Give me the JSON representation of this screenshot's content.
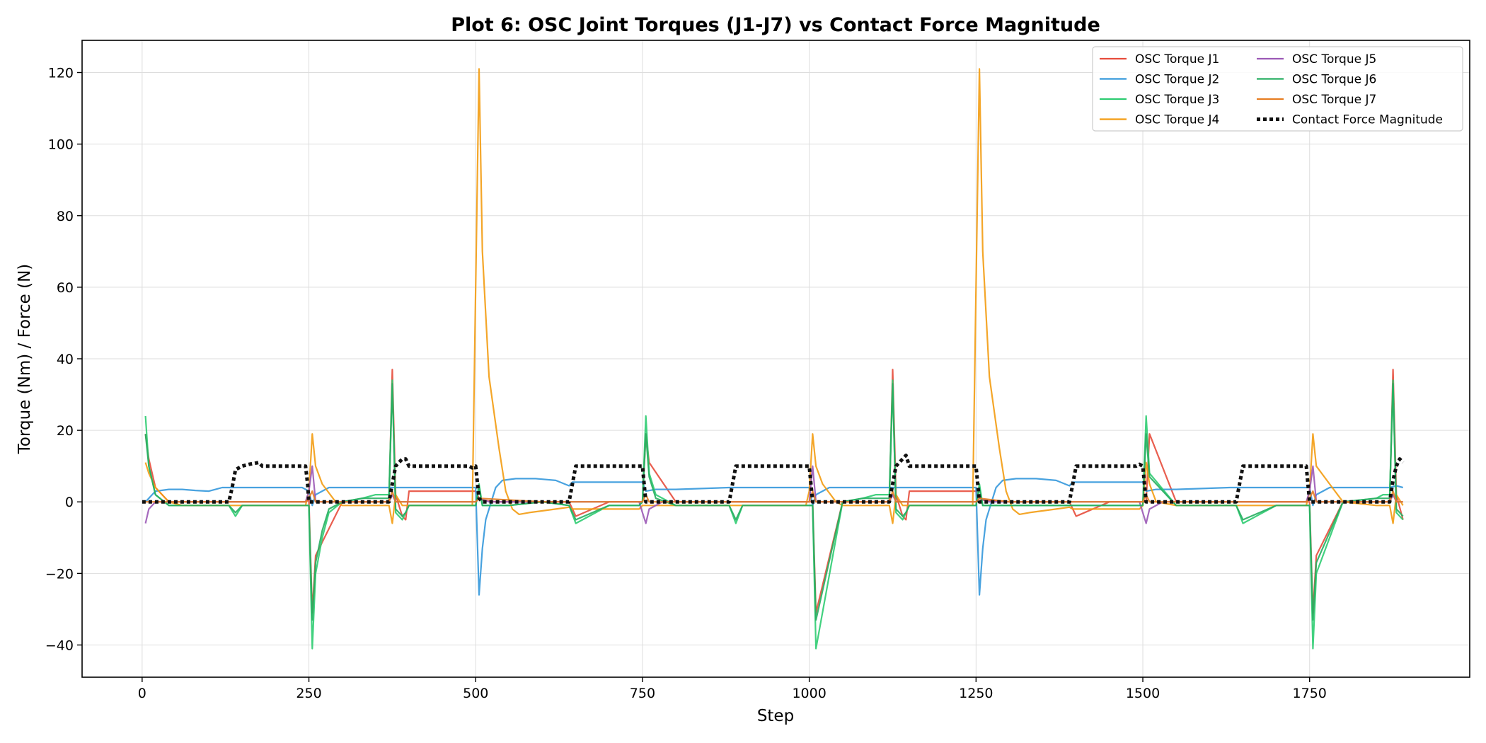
{
  "chart_data": {
    "type": "line",
    "title": "Plot 6: OSC Joint Torques (J1-J7) vs Contact Force Magnitude",
    "xlabel": "Step",
    "ylabel": "Torque (Nm) / Force (N)",
    "xlim": [
      -90,
      1990
    ],
    "ylim": [
      -49,
      129
    ],
    "xticks": [
      0,
      250,
      500,
      750,
      1000,
      1250,
      1500,
      1750
    ],
    "xtick_labels": [
      "0",
      "250",
      "500",
      "750",
      "1000",
      "1250",
      "1500",
      "1750"
    ],
    "yticks": [
      -40,
      -20,
      0,
      20,
      40,
      60,
      80,
      100,
      120
    ],
    "ytick_labels": [
      "−40",
      "−20",
      "0",
      "20",
      "40",
      "60",
      "80",
      "100",
      "120"
    ],
    "grid": true,
    "legend_position": "top-right",
    "legend_columns": 2,
    "series": [
      {
        "name": "OSC Torque J1",
        "color": "#e74c3c",
        "style": "solid",
        "x": [
          5,
          10,
          20,
          40,
          60,
          100,
          140,
          200,
          245,
          250,
          255,
          260,
          300,
          350,
          370,
          375,
          380,
          390,
          395,
          400,
          450,
          500,
          505,
          510,
          530,
          600,
          640,
          650,
          700,
          745,
          750,
          755,
          760,
          800,
          880,
          890,
          900,
          1000,
          1005,
          1010,
          1050,
          1100,
          1120,
          1125,
          1130,
          1140,
          1145,
          1150,
          1200,
          1250,
          1255,
          1260,
          1300,
          1390,
          1400,
          1450,
          1500,
          1505,
          1510,
          1550,
          1640,
          1650,
          1700,
          1750,
          1755,
          1760,
          1800,
          1860,
          1870,
          1875,
          1880,
          1890
        ],
        "y": [
          19,
          12,
          4,
          0,
          0,
          0,
          0,
          0,
          0,
          0.5,
          -31,
          -15,
          0,
          0,
          0,
          37,
          2,
          -4,
          -5,
          3,
          3,
          3,
          1,
          0.5,
          0,
          0,
          0,
          -4,
          0,
          0,
          0,
          19,
          11,
          0,
          0,
          0,
          0,
          0,
          0,
          -31,
          0,
          0,
          0,
          37,
          2,
          -4,
          -5,
          3,
          3,
          3,
          1,
          0.5,
          0,
          0,
          -4,
          0,
          0,
          0,
          19,
          0,
          0,
          0,
          0,
          0,
          -31,
          -15,
          0,
          0,
          0,
          37,
          2,
          -5
        ]
      },
      {
        "name": "OSC Torque J2",
        "color": "#3498db",
        "style": "solid",
        "x": [
          5,
          20,
          40,
          60,
          80,
          100,
          110,
          120,
          140,
          160,
          200,
          240,
          250,
          255,
          260,
          280,
          300,
          340,
          370,
          380,
          400,
          450,
          500,
          505,
          510,
          515,
          530,
          540,
          560,
          590,
          620,
          640,
          645,
          650,
          700,
          750,
          755,
          770,
          800,
          880,
          890,
          900,
          1000,
          1005,
          1010,
          1030,
          1050,
          1090,
          1120,
          1130,
          1150,
          1200,
          1250,
          1255,
          1260,
          1265,
          1280,
          1290,
          1310,
          1340,
          1370,
          1390,
          1395,
          1400,
          1450,
          1500,
          1505,
          1520,
          1550,
          1630,
          1640,
          1650,
          1750,
          1755,
          1760,
          1780,
          1800,
          1840,
          1870,
          1880,
          1890
        ],
        "y": [
          0,
          3,
          3.5,
          3.5,
          3.2,
          3,
          3.5,
          4,
          4,
          4,
          4,
          4,
          3,
          -1,
          2,
          4,
          4,
          4,
          4,
          4,
          4,
          4,
          4,
          -26,
          -13,
          -5,
          4,
          6,
          6.5,
          6.5,
          6,
          4.5,
          5.5,
          5.5,
          5.5,
          5.5,
          3,
          3.5,
          3.5,
          4,
          4,
          4,
          4,
          -1,
          2,
          4,
          4,
          4,
          4,
          4,
          4,
          4,
          4,
          -26,
          -13,
          -5,
          4,
          6,
          6.5,
          6.5,
          6,
          4.5,
          5.5,
          5.5,
          5.5,
          5.5,
          3,
          3.5,
          3.5,
          4,
          4,
          4,
          4,
          -1,
          2,
          4,
          4,
          4,
          4,
          4.5,
          4
        ]
      },
      {
        "name": "OSC Torque J3",
        "color": "#2ecc71",
        "style": "solid",
        "x": [
          5,
          10,
          20,
          40,
          60,
          100,
          130,
          140,
          150,
          200,
          245,
          250,
          255,
          260,
          270,
          280,
          300,
          330,
          350,
          370,
          375,
          380,
          390,
          395,
          400,
          450,
          500,
          505,
          510,
          550,
          600,
          640,
          650,
          700,
          745,
          750,
          755,
          760,
          770,
          800,
          850,
          880,
          890,
          900,
          1000,
          1005,
          1010,
          1050,
          1080,
          1100,
          1120,
          1125,
          1130,
          1140,
          1145,
          1150,
          1200,
          1250,
          1255,
          1260,
          1300,
          1400,
          1500,
          1505,
          1510,
          1550,
          1600,
          1640,
          1650,
          1700,
          1750,
          1755,
          1760,
          1800,
          1850,
          1860,
          1870,
          1875,
          1880,
          1890
        ],
        "y": [
          24,
          10,
          2,
          -1,
          -1,
          -1,
          -1,
          -4,
          -1,
          -1,
          -1,
          -1,
          -41,
          -20,
          -10,
          -3,
          0,
          1,
          2,
          2,
          34,
          -3,
          -5,
          -3,
          -1,
          -1,
          -1,
          5,
          -1,
          -1,
          0,
          -1,
          -6,
          -1,
          -1,
          0,
          24,
          8,
          2,
          -1,
          -1,
          -1,
          -6,
          -1,
          -1,
          -1,
          -41,
          0,
          1,
          2,
          2,
          34,
          -3,
          -5,
          -3,
          -1,
          -1,
          -1,
          5,
          -1,
          -1,
          -1,
          -1,
          24,
          8,
          -1,
          -1,
          -1,
          -6,
          -1,
          -1,
          -41,
          -20,
          0,
          1,
          2,
          2,
          34,
          -3,
          -5
        ]
      },
      {
        "name": "OSC Torque J4",
        "color": "#f39c12",
        "style": "solid",
        "x": [
          5,
          10,
          20,
          40,
          60,
          100,
          200,
          245,
          250,
          255,
          260,
          270,
          290,
          300,
          350,
          370,
          375,
          380,
          390,
          495,
          500,
          505,
          510,
          520,
          535,
          545,
          555,
          565,
          580,
          620,
          640,
          645,
          650,
          740,
          745,
          750,
          755,
          760,
          770,
          800,
          880,
          890,
          900,
          995,
          1000,
          1005,
          1010,
          1020,
          1040,
          1050,
          1100,
          1120,
          1125,
          1130,
          1140,
          1245,
          1250,
          1255,
          1260,
          1270,
          1285,
          1295,
          1305,
          1315,
          1330,
          1370,
          1390,
          1395,
          1400,
          1490,
          1495,
          1500,
          1505,
          1510,
          1520,
          1550,
          1630,
          1640,
          1650,
          1745,
          1750,
          1755,
          1760,
          1780,
          1800,
          1850,
          1870,
          1875,
          1880,
          1890
        ],
        "y": [
          11,
          8,
          4,
          0,
          -1,
          -1,
          -1,
          -1,
          3,
          19,
          10,
          5,
          0,
          -1,
          -1,
          -1,
          -6,
          2,
          -1,
          -1,
          60,
          121,
          70,
          35,
          15,
          3,
          -2,
          -3.5,
          -3,
          -2,
          -1.5,
          -2,
          -2,
          -2,
          -2,
          -1,
          -1,
          -1,
          -1,
          -1,
          -1,
          -1,
          -1,
          -1,
          3,
          19,
          10,
          5,
          0,
          -1,
          -1,
          -1,
          -6,
          2,
          -1,
          -1,
          60,
          121,
          70,
          35,
          15,
          3,
          -2,
          -3.5,
          -3,
          -2,
          -1.5,
          -2,
          -2,
          -2,
          -2,
          -1,
          11,
          5,
          0,
          -1,
          -1,
          -1,
          -1,
          -1,
          3,
          19,
          10,
          5,
          0,
          -1,
          -1,
          -6,
          2,
          -1
        ]
      },
      {
        "name": "OSC Torque J5",
        "color": "#9b59b6",
        "style": "solid",
        "x": [
          5,
          10,
          20,
          40,
          100,
          200,
          245,
          250,
          255,
          260,
          280,
          370,
          375,
          380,
          400,
          500,
          505,
          520,
          600,
          745,
          750,
          755,
          760,
          780,
          880,
          1000,
          1005,
          1010,
          1030,
          1120,
          1125,
          1130,
          1150,
          1250,
          1255,
          1270,
          1350,
          1495,
          1500,
          1505,
          1510,
          1530,
          1640,
          1745,
          1750,
          1755,
          1760,
          1780,
          1870,
          1875,
          1880,
          1890
        ],
        "y": [
          -6,
          -2,
          0,
          0,
          0,
          0,
          0,
          3,
          10,
          0,
          0,
          0,
          2,
          0,
          0,
          0,
          1,
          0,
          0,
          0,
          -3,
          -6,
          -2,
          0,
          0,
          0,
          10,
          0,
          0,
          0,
          2,
          0,
          0,
          0,
          1,
          0,
          0,
          0,
          -3,
          -6,
          -2,
          0,
          0,
          0,
          3,
          10,
          0,
          0,
          0,
          2,
          0,
          0
        ]
      },
      {
        "name": "OSC Torque J6",
        "color": "#27ae60",
        "style": "solid",
        "x": [
          5,
          10,
          20,
          40,
          60,
          100,
          130,
          140,
          150,
          200,
          245,
          250,
          255,
          260,
          270,
          280,
          300,
          330,
          350,
          370,
          375,
          380,
          390,
          395,
          400,
          450,
          500,
          505,
          510,
          550,
          600,
          640,
          650,
          700,
          745,
          750,
          755,
          760,
          770,
          800,
          850,
          880,
          890,
          900,
          1000,
          1005,
          1010,
          1050,
          1080,
          1100,
          1120,
          1125,
          1130,
          1140,
          1145,
          1150,
          1200,
          1250,
          1255,
          1260,
          1300,
          1400,
          1500,
          1505,
          1510,
          1550,
          1600,
          1640,
          1650,
          1700,
          1750,
          1755,
          1760,
          1800,
          1850,
          1860,
          1870,
          1875,
          1880,
          1890
        ],
        "y": [
          19,
          10,
          2,
          -1,
          -1,
          -1,
          -1,
          -3,
          -1,
          -1,
          -1,
          -1,
          -33,
          -17,
          -8,
          -2,
          0,
          1,
          1,
          1,
          33,
          -2,
          -4,
          -3,
          -1,
          -1,
          -1,
          4,
          -1,
          -1,
          0,
          -1,
          -5,
          -1,
          -1,
          0,
          19,
          7,
          1,
          -1,
          -1,
          -1,
          -5,
          -1,
          -1,
          -1,
          -33,
          0,
          1,
          1,
          1,
          33,
          -2,
          -4,
          -3,
          -1,
          -1,
          -1,
          4,
          -1,
          -1,
          -1,
          -1,
          19,
          7,
          -1,
          -1,
          -1,
          -5,
          -1,
          -1,
          -33,
          -17,
          0,
          1,
          1,
          1,
          33,
          -2,
          -4
        ]
      },
      {
        "name": "OSC Torque J7",
        "color": "#e67e22",
        "style": "solid",
        "x": [
          5,
          20,
          100,
          245,
          250,
          255,
          260,
          300,
          370,
          375,
          380,
          400,
          500,
          505,
          600,
          745,
          750,
          755,
          760,
          800,
          1000,
          1005,
          1010,
          1050,
          1120,
          1125,
          1130,
          1150,
          1250,
          1255,
          1300,
          1500,
          1505,
          1510,
          1550,
          1745,
          1750,
          1755,
          1760,
          1800,
          1870,
          1875,
          1880,
          1890
        ],
        "y": [
          0,
          0,
          0,
          0,
          1,
          3,
          0,
          0,
          0,
          3,
          0,
          0,
          0,
          1,
          0,
          0,
          0,
          2,
          0,
          0,
          0,
          3,
          0,
          0,
          0,
          3,
          0,
          0,
          0,
          1,
          0,
          0,
          2,
          0,
          0,
          0,
          1,
          3,
          0,
          0,
          0,
          3,
          0,
          0
        ]
      },
      {
        "name": "Contact Force Magnitude",
        "color": "#111111",
        "style": "dotted",
        "x": [
          0,
          50,
          100,
          130,
          135,
          140,
          150,
          160,
          175,
          180,
          200,
          240,
          245,
          248,
          250,
          300,
          370,
          375,
          380,
          385,
          390,
          395,
          400,
          410,
          450,
          490,
          495,
          500,
          505,
          510,
          550,
          600,
          640,
          645,
          650,
          700,
          745,
          750,
          755,
          800,
          880,
          885,
          890,
          900,
          1000,
          1005,
          1010,
          1050,
          1120,
          1125,
          1130,
          1140,
          1145,
          1150,
          1160,
          1200,
          1240,
          1245,
          1250,
          1255,
          1260,
          1300,
          1390,
          1395,
          1400,
          1450,
          1490,
          1495,
          1500,
          1505,
          1510,
          1550,
          1640,
          1645,
          1650,
          1700,
          1745,
          1750,
          1755,
          1800,
          1870,
          1875,
          1880,
          1885,
          1890
        ],
        "y": [
          0,
          0,
          0,
          0,
          4,
          9,
          10,
          10.5,
          11,
          10,
          10,
          10,
          10,
          5,
          0,
          0,
          0,
          5,
          10,
          11,
          12,
          12,
          10,
          10,
          10,
          10,
          9.5,
          10,
          1,
          0,
          0,
          0,
          0,
          5,
          10,
          10,
          10,
          10,
          0,
          0,
          0,
          5,
          10,
          10,
          10,
          0,
          0,
          0,
          0,
          5,
          10,
          12,
          13,
          10,
          10,
          10,
          10,
          10,
          10,
          0,
          0,
          0,
          0,
          5,
          10,
          10,
          10,
          10.5,
          10,
          0,
          0,
          0,
          0,
          5,
          10,
          10,
          10,
          0,
          0,
          0,
          0,
          6,
          10,
          12,
          11
        ]
      }
    ]
  }
}
